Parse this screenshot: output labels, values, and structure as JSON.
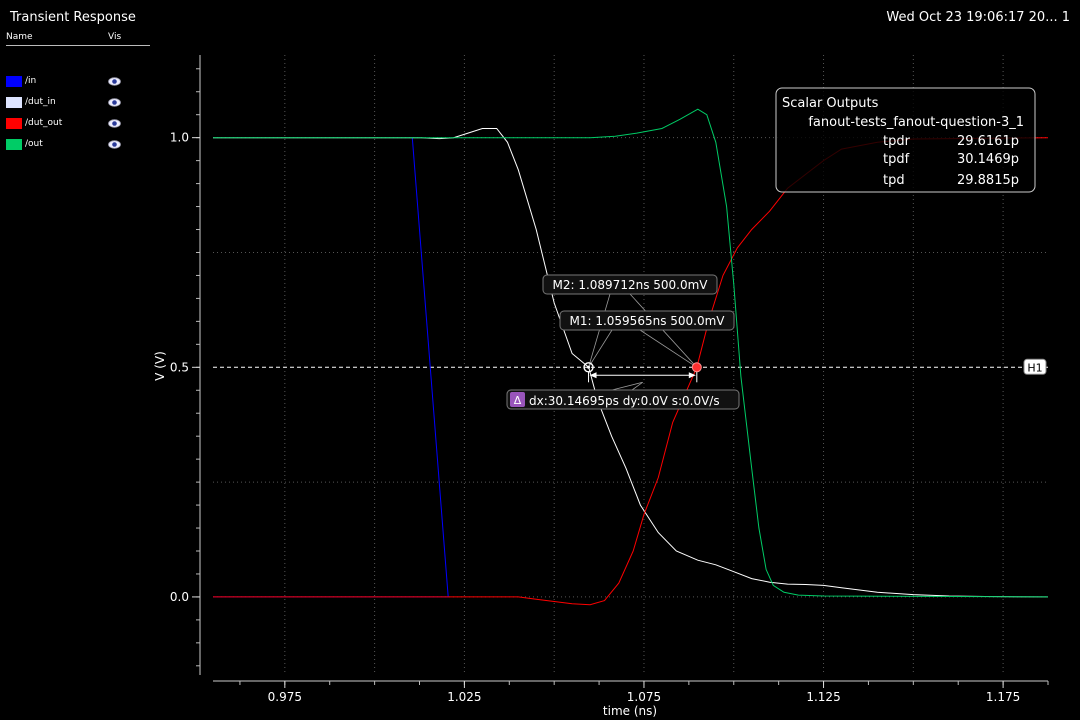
{
  "window": {
    "title": "Transient Response",
    "timestamp": "Wed Oct 23 19:06:17 20...  1"
  },
  "legend": {
    "col_name": "Name",
    "col_vis": "Vis",
    "items": [
      {
        "name": "/in",
        "color": "#0000ff"
      },
      {
        "name": "/dut_in",
        "color": "#dde4ff"
      },
      {
        "name": "/dut_out",
        "color": "#ff0000"
      },
      {
        "name": "/out",
        "color": "#00cc66"
      }
    ],
    "vis_icon": "eye-icon"
  },
  "chart_data": {
    "type": "line",
    "xlabel": "time (ns)",
    "ylabel": "V (V)",
    "xlim": [
      0.955,
      1.1875
    ],
    "ylim": [
      -0.17,
      1.18
    ],
    "x_ticks": [
      0.975,
      1.025,
      1.075,
      1.125,
      1.175
    ],
    "x_tick_labels": [
      "0.975",
      "1.025",
      "1.075",
      "1.125",
      "1.175"
    ],
    "y_ticks": [
      0.0,
      0.5,
      1.0
    ],
    "y_tick_labels": [
      "0.0",
      "0.5",
      "1.0"
    ],
    "grid": true,
    "series": [
      {
        "name": "/in",
        "color": "#0000ff",
        "points": [
          [
            0.955,
            0
          ],
          [
            1.0205,
            0
          ],
          [
            1.0105,
            1.0
          ]
        ]
      },
      {
        "name": "/dut_in",
        "color": "#ffffff",
        "points": [
          [
            0.955,
            1.0
          ],
          [
            1.013,
            1.0
          ],
          [
            1.018,
            0.998
          ],
          [
            1.022,
            1.0
          ],
          [
            1.026,
            1.01
          ],
          [
            1.03,
            1.02
          ],
          [
            1.034,
            1.02
          ],
          [
            1.037,
            0.99
          ],
          [
            1.04,
            0.93
          ],
          [
            1.045,
            0.8
          ],
          [
            1.05,
            0.64
          ],
          [
            1.055,
            0.53
          ],
          [
            1.0596,
            0.5
          ],
          [
            1.062,
            0.43
          ],
          [
            1.066,
            0.35
          ],
          [
            1.07,
            0.28
          ],
          [
            1.074,
            0.2
          ],
          [
            1.079,
            0.14
          ],
          [
            1.084,
            0.1
          ],
          [
            1.09,
            0.08
          ],
          [
            1.095,
            0.07
          ],
          [
            1.1,
            0.055
          ],
          [
            1.105,
            0.04
          ],
          [
            1.11,
            0.032
          ],
          [
            1.115,
            0.028
          ],
          [
            1.12,
            0.027
          ],
          [
            1.125,
            0.025
          ],
          [
            1.13,
            0.02
          ],
          [
            1.14,
            0.01
          ],
          [
            1.15,
            0.005
          ],
          [
            1.16,
            0.002
          ],
          [
            1.17,
            0.001
          ],
          [
            1.1875,
            0.0
          ]
        ]
      },
      {
        "name": "/dut_out",
        "color": "#ff0000",
        "points": [
          [
            0.955,
            0
          ],
          [
            1.04,
            0
          ],
          [
            1.045,
            -0.005
          ],
          [
            1.05,
            -0.01
          ],
          [
            1.055,
            -0.015
          ],
          [
            1.06,
            -0.017
          ],
          [
            1.064,
            -0.008
          ],
          [
            1.068,
            0.03
          ],
          [
            1.072,
            0.1
          ],
          [
            1.075,
            0.18
          ],
          [
            1.079,
            0.26
          ],
          [
            1.083,
            0.38
          ],
          [
            1.0897,
            0.5
          ],
          [
            1.093,
            0.6
          ],
          [
            1.097,
            0.7
          ],
          [
            1.101,
            0.76
          ],
          [
            1.105,
            0.8
          ],
          [
            1.11,
            0.84
          ],
          [
            1.115,
            0.89
          ],
          [
            1.12,
            0.92
          ],
          [
            1.125,
            0.95
          ],
          [
            1.13,
            0.975
          ],
          [
            1.14,
            0.99
          ],
          [
            1.15,
            0.997
          ],
          [
            1.1875,
            1.0
          ]
        ]
      },
      {
        "name": "/out",
        "color": "#00cc66",
        "points": [
          [
            0.955,
            1.0
          ],
          [
            1.06,
            1.0
          ],
          [
            1.067,
            1.003
          ],
          [
            1.073,
            1.01
          ],
          [
            1.08,
            1.02
          ],
          [
            1.085,
            1.04
          ],
          [
            1.09,
            1.062
          ],
          [
            1.0925,
            1.05
          ],
          [
            1.095,
            0.99
          ],
          [
            1.098,
            0.85
          ],
          [
            1.1,
            0.68
          ],
          [
            1.102,
            0.48
          ],
          [
            1.105,
            0.28
          ],
          [
            1.107,
            0.15
          ],
          [
            1.109,
            0.06
          ],
          [
            1.111,
            0.025
          ],
          [
            1.114,
            0.01
          ],
          [
            1.118,
            0.004
          ],
          [
            1.125,
            0.002
          ],
          [
            1.1875,
            0.0
          ]
        ]
      }
    ],
    "hline": {
      "y": 0.5,
      "label": "H1"
    },
    "markers": [
      {
        "name": "M1",
        "x": 1.059565,
        "y": 0.5,
        "label": "M1: 1.059565ns 500.0mV"
      },
      {
        "name": "M2",
        "x": 1.089712,
        "y": 0.5,
        "label": "M2: 1.089712ns 500.0mV"
      }
    ],
    "delta_label": "dx:30.14695ps dy:0.0V s:0.0V/s",
    "delta_icon": "delta-icon",
    "scalar_outputs": {
      "title": "Scalar Outputs",
      "test_name": "fanout-tests_fanout-question-3_1",
      "rows": [
        {
          "name": "tpdr",
          "value": "29.6161p"
        },
        {
          "name": "tpdf",
          "value": "30.1469p"
        },
        {
          "name": "tpd",
          "value": "29.8815p"
        }
      ]
    }
  }
}
